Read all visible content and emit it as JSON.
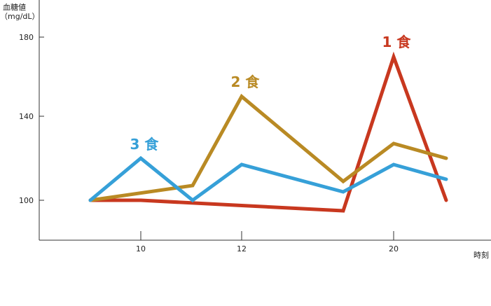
{
  "chart_data": {
    "type": "line",
    "ylabel": "血糖値",
    "yunit": "（mg/dL）",
    "xlabel": "時刻",
    "x_ticks": [
      "10",
      "12",
      "20"
    ],
    "y_ticks": [
      100,
      140,
      180
    ],
    "ylim": [
      80,
      196
    ],
    "grid": false,
    "series": [
      {
        "name": "1食",
        "color": "#c8381f",
        "points": [
          {
            "x": 8.2,
            "y": 100
          },
          {
            "x": 10,
            "y": 100
          },
          {
            "x": 12,
            "y": 97.5
          },
          {
            "x": 18.2,
            "y": 95
          },
          {
            "x": 20,
            "y": 170
          },
          {
            "x": 21,
            "y": 100
          }
        ]
      },
      {
        "name": "2食",
        "color": "#b98a24",
        "points": [
          {
            "x": 8.2,
            "y": 100
          },
          {
            "x": 11,
            "y": 107
          },
          {
            "x": 12,
            "y": 150
          },
          {
            "x": 18.2,
            "y": 109
          },
          {
            "x": 20,
            "y": 127
          },
          {
            "x": 21,
            "y": 120
          }
        ]
      },
      {
        "name": "3食",
        "color": "#36a0d8",
        "points": [
          {
            "x": 8.2,
            "y": 100
          },
          {
            "x": 10,
            "y": 120
          },
          {
            "x": 11,
            "y": 100
          },
          {
            "x": 12,
            "y": 117
          },
          {
            "x": 18.2,
            "y": 104
          },
          {
            "x": 20,
            "y": 117
          },
          {
            "x": 21,
            "y": 110
          }
        ]
      }
    ]
  }
}
